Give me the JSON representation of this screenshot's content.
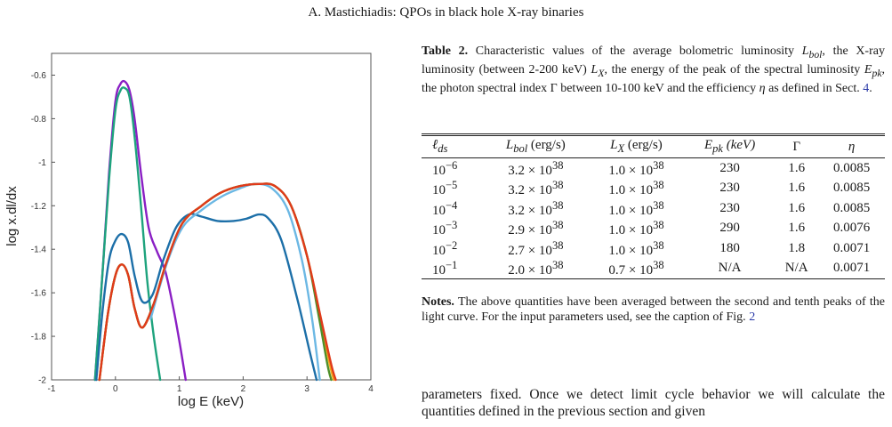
{
  "header": {
    "running_head": "A. Mastichiadis: QPOs in black hole X-ray binaries"
  },
  "chart_data": {
    "type": "line",
    "title": "",
    "xlabel": "log E (keV)",
    "ylabel": "log x.dl/dx",
    "xlim": [
      -1,
      4
    ],
    "ylim": [
      -2,
      -0.5
    ],
    "x_ticks": [
      -1,
      0,
      1,
      2,
      3,
      4
    ],
    "y_ticks": [
      -2,
      -1.8,
      -1.6,
      -1.4,
      -1.2,
      -1,
      -0.8,
      -0.6
    ],
    "x_tick_labels": [
      "-1",
      "0",
      "1",
      "2",
      "3",
      "4"
    ],
    "y_tick_labels": [
      "-2",
      "-1.8",
      "-1.6",
      "-1.4",
      "-1.2",
      "-1",
      "-0.8",
      "-0.6"
    ],
    "grid": false,
    "series": [
      {
        "color": "#8a1fc4",
        "points": [
          [
            -0.32,
            -2
          ],
          [
            -0.2,
            -1.5
          ],
          [
            -0.1,
            -1.05
          ],
          [
            0,
            -0.72
          ],
          [
            0.08,
            -0.64
          ],
          [
            0.15,
            -0.63
          ],
          [
            0.22,
            -0.67
          ],
          [
            0.3,
            -0.8
          ],
          [
            0.4,
            -1.05
          ],
          [
            0.52,
            -1.3
          ],
          [
            0.65,
            -1.41
          ],
          [
            0.78,
            -1.5
          ],
          [
            0.9,
            -1.66
          ],
          [
            1.0,
            -1.82
          ],
          [
            1.1,
            -2
          ]
        ]
      },
      {
        "color": "#1ea37d",
        "points": [
          [
            -0.32,
            -2
          ],
          [
            -0.2,
            -1.5
          ],
          [
            -0.1,
            -1.08
          ],
          [
            0,
            -0.76
          ],
          [
            0.08,
            -0.67
          ],
          [
            0.15,
            -0.66
          ],
          [
            0.22,
            -0.7
          ],
          [
            0.3,
            -0.88
          ],
          [
            0.4,
            -1.2
          ],
          [
            0.5,
            -1.55
          ],
          [
            0.6,
            -1.8
          ],
          [
            0.7,
            -2
          ]
        ]
      },
      {
        "color": "#1c6fa8",
        "points": [
          [
            -0.3,
            -2
          ],
          [
            -0.2,
            -1.68
          ],
          [
            -0.1,
            -1.45
          ],
          [
            0,
            -1.36
          ],
          [
            0.1,
            -1.33
          ],
          [
            0.2,
            -1.37
          ],
          [
            0.3,
            -1.52
          ],
          [
            0.42,
            -1.64
          ],
          [
            0.58,
            -1.61
          ],
          [
            0.75,
            -1.45
          ],
          [
            0.95,
            -1.3
          ],
          [
            1.15,
            -1.24
          ],
          [
            1.35,
            -1.25
          ],
          [
            1.6,
            -1.27
          ],
          [
            1.85,
            -1.27
          ],
          [
            2.05,
            -1.26
          ],
          [
            2.25,
            -1.24
          ],
          [
            2.4,
            -1.26
          ],
          [
            2.6,
            -1.36
          ],
          [
            2.85,
            -1.63
          ],
          [
            3.05,
            -1.88
          ],
          [
            3.15,
            -2
          ]
        ]
      },
      {
        "color": "#f4a51a",
        "points": [
          [
            -0.25,
            -2
          ],
          [
            -0.12,
            -1.7
          ],
          [
            0,
            -1.52
          ],
          [
            0.1,
            -1.47
          ],
          [
            0.2,
            -1.52
          ],
          [
            0.3,
            -1.67
          ],
          [
            0.42,
            -1.76
          ],
          [
            0.6,
            -1.65
          ],
          [
            0.8,
            -1.46
          ],
          [
            1.05,
            -1.28
          ],
          [
            1.35,
            -1.2
          ],
          [
            1.65,
            -1.14
          ],
          [
            1.95,
            -1.11
          ],
          [
            2.25,
            -1.1
          ],
          [
            2.5,
            -1.11
          ],
          [
            2.75,
            -1.2
          ],
          [
            3.0,
            -1.43
          ],
          [
            3.2,
            -1.7
          ],
          [
            3.35,
            -1.92
          ],
          [
            3.42,
            -2
          ]
        ]
      },
      {
        "color": "#4f8f2a",
        "points": [
          [
            -0.25,
            -2
          ],
          [
            -0.12,
            -1.7
          ],
          [
            0,
            -1.52
          ],
          [
            0.1,
            -1.47
          ],
          [
            0.2,
            -1.52
          ],
          [
            0.3,
            -1.67
          ],
          [
            0.42,
            -1.76
          ],
          [
            0.6,
            -1.65
          ],
          [
            0.8,
            -1.46
          ],
          [
            1.05,
            -1.28
          ],
          [
            1.35,
            -1.2
          ],
          [
            1.65,
            -1.14
          ],
          [
            1.95,
            -1.11
          ],
          [
            2.25,
            -1.1
          ],
          [
            2.5,
            -1.11
          ],
          [
            2.75,
            -1.2
          ],
          [
            3.0,
            -1.43
          ],
          [
            3.18,
            -1.7
          ],
          [
            3.32,
            -1.93
          ],
          [
            3.38,
            -2
          ]
        ]
      },
      {
        "color": "#6cb8e4",
        "points": [
          [
            0.55,
            -1.72
          ],
          [
            0.8,
            -1.47
          ],
          [
            1.05,
            -1.3
          ],
          [
            1.35,
            -1.22
          ],
          [
            1.65,
            -1.16
          ],
          [
            1.95,
            -1.12
          ],
          [
            2.2,
            -1.1
          ],
          [
            2.45,
            -1.12
          ],
          [
            2.7,
            -1.22
          ],
          [
            2.92,
            -1.45
          ],
          [
            3.08,
            -1.72
          ],
          [
            3.2,
            -2
          ]
        ]
      },
      {
        "color": "#e03a1a",
        "points": [
          [
            -0.25,
            -2
          ],
          [
            -0.12,
            -1.7
          ],
          [
            0,
            -1.52
          ],
          [
            0.1,
            -1.47
          ],
          [
            0.2,
            -1.52
          ],
          [
            0.3,
            -1.67
          ],
          [
            0.42,
            -1.76
          ],
          [
            0.6,
            -1.65
          ],
          [
            0.8,
            -1.46
          ],
          [
            1.05,
            -1.28
          ],
          [
            1.35,
            -1.2
          ],
          [
            1.65,
            -1.14
          ],
          [
            1.95,
            -1.11
          ],
          [
            2.25,
            -1.1
          ],
          [
            2.5,
            -1.11
          ],
          [
            2.75,
            -1.2
          ],
          [
            3.0,
            -1.43
          ],
          [
            3.22,
            -1.72
          ],
          [
            3.38,
            -1.93
          ],
          [
            3.45,
            -2
          ]
        ]
      }
    ]
  },
  "caption": {
    "label": "Table 2.",
    "text_a": " Characteristic values of the average bolometric luminosity ",
    "lbol_sym": "L",
    "lbol_sub": "bol",
    "text_b": ", the X-ray luminosity (between 2-200 keV) ",
    "lx_sym": "L",
    "lx_sub": "X",
    "text_c": ", the energy of the peak of the spectral luminosity ",
    "epk_sym": "E",
    "epk_sub": "pk",
    "text_d": ", the photon spectral index Γ between 10-100 keV and the efficiency ",
    "eta": "η",
    "text_e": " as defined in Sect. ",
    "sect_ref": "4",
    "text_f": "."
  },
  "table": {
    "headers": [
      "ℓds",
      "Lbol (erg/s)",
      "LX (erg/s)",
      "Epk (keV)",
      "Γ",
      "η"
    ],
    "header_parts": {
      "h0_sym": "ℓ",
      "h0_sub": "ds",
      "h1_sym": "L",
      "h1_sub": "bol",
      "h1_unit": " (erg/s)",
      "h2_sym": "L",
      "h2_sub": "X",
      "h2_unit": " (erg/s)",
      "h3_sym": "E",
      "h3_sub": "pk",
      "h3_unit": "  (keV)",
      "h4": "Γ",
      "h5": "η"
    },
    "rows": [
      {
        "lds_base": "10",
        "lds_exp": "−6",
        "lbol_m": "3.2 × 10",
        "lbol_e": "38",
        "lx_m": "1.0 × 10",
        "lx_e": "38",
        "epk": "230",
        "gamma": "1.6",
        "eta": "0.0085"
      },
      {
        "lds_base": "10",
        "lds_exp": "−5",
        "lbol_m": "3.2 × 10",
        "lbol_e": "38",
        "lx_m": "1.0 × 10",
        "lx_e": "38",
        "epk": "230",
        "gamma": "1.6",
        "eta": "0.0085"
      },
      {
        "lds_base": "10",
        "lds_exp": "−4",
        "lbol_m": "3.2 × 10",
        "lbol_e": "38",
        "lx_m": "1.0 × 10",
        "lx_e": "38",
        "epk": "230",
        "gamma": "1.6",
        "eta": "0.0085"
      },
      {
        "lds_base": "10",
        "lds_exp": "−3",
        "lbol_m": "2.9 × 10",
        "lbol_e": "38",
        "lx_m": "1.0 × 10",
        "lx_e": "38",
        "epk": "290",
        "gamma": "1.6",
        "eta": "0.0076"
      },
      {
        "lds_base": "10",
        "lds_exp": "−2",
        "lbol_m": "2.7 × 10",
        "lbol_e": "38",
        "lx_m": "1.0 × 10",
        "lx_e": "38",
        "epk": "180",
        "gamma": "1.8",
        "eta": "0.0071"
      },
      {
        "lds_base": "10",
        "lds_exp": "−1",
        "lbol_m": "2.0 × 10",
        "lbol_e": "38",
        "lx_m": "0.7 × 10",
        "lx_e": "38",
        "epk": "N/A",
        "gamma": "N/A",
        "eta": "0.0071"
      }
    ]
  },
  "notes": {
    "label": "Notes.",
    "text": " The above quantities have been averaged between the second and tenth peaks of the light curve. For the input parameters used, see the caption of Fig. ",
    "fig_ref": "2"
  },
  "body": {
    "text": "parameters fixed. Once we detect limit cycle behavior we will calculate the quantities defined in the previous section and given"
  }
}
